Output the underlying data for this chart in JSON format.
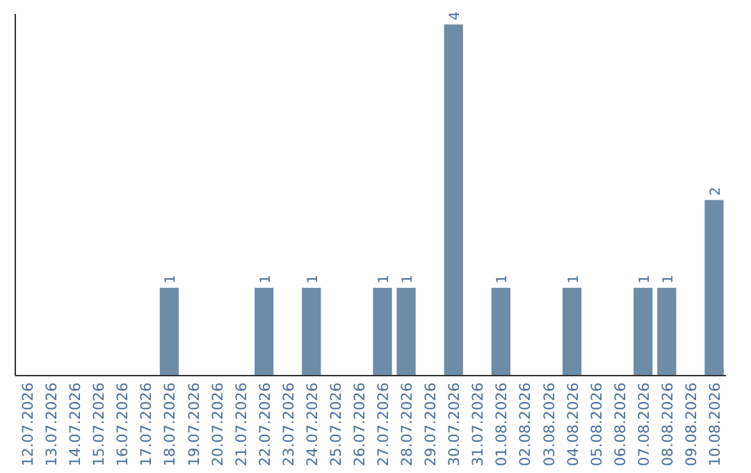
{
  "chart_data": {
    "type": "bar",
    "categories": [
      "12.07.2026",
      "13.07.2026",
      "14.07.2026",
      "15.07.2026",
      "16.07.2026",
      "17.07.2026",
      "18.07.2026",
      "19.07.2026",
      "20.07.2026",
      "21.07.2026",
      "22.07.2026",
      "23.07.2026",
      "24.07.2026",
      "25.07.2026",
      "26.07.2026",
      "27.07.2026",
      "28.07.2026",
      "29.07.2026",
      "30.07.2026",
      "31.07.2026",
      "01.08.2026",
      "02.08.2026",
      "03.08.2026",
      "04.08.2026",
      "05.08.2026",
      "06.08.2026",
      "07.08.2026",
      "08.08.2026",
      "09.08.2026",
      "10.08.2026"
    ],
    "values": [
      0,
      0,
      0,
      0,
      0,
      0,
      1,
      0,
      0,
      0,
      1,
      0,
      1,
      0,
      0,
      1,
      1,
      0,
      4,
      0,
      1,
      0,
      0,
      1,
      0,
      0,
      1,
      1,
      0,
      2
    ],
    "value_labels": [
      null,
      null,
      null,
      null,
      null,
      null,
      "1",
      null,
      null,
      null,
      "1",
      null,
      "1",
      null,
      null,
      "1",
      "1",
      null,
      "4",
      null,
      "1",
      null,
      null,
      "1",
      null,
      null,
      "1",
      "1",
      null,
      "2"
    ],
    "color": "#6d8ca8",
    "tick_labels": "x"
  }
}
